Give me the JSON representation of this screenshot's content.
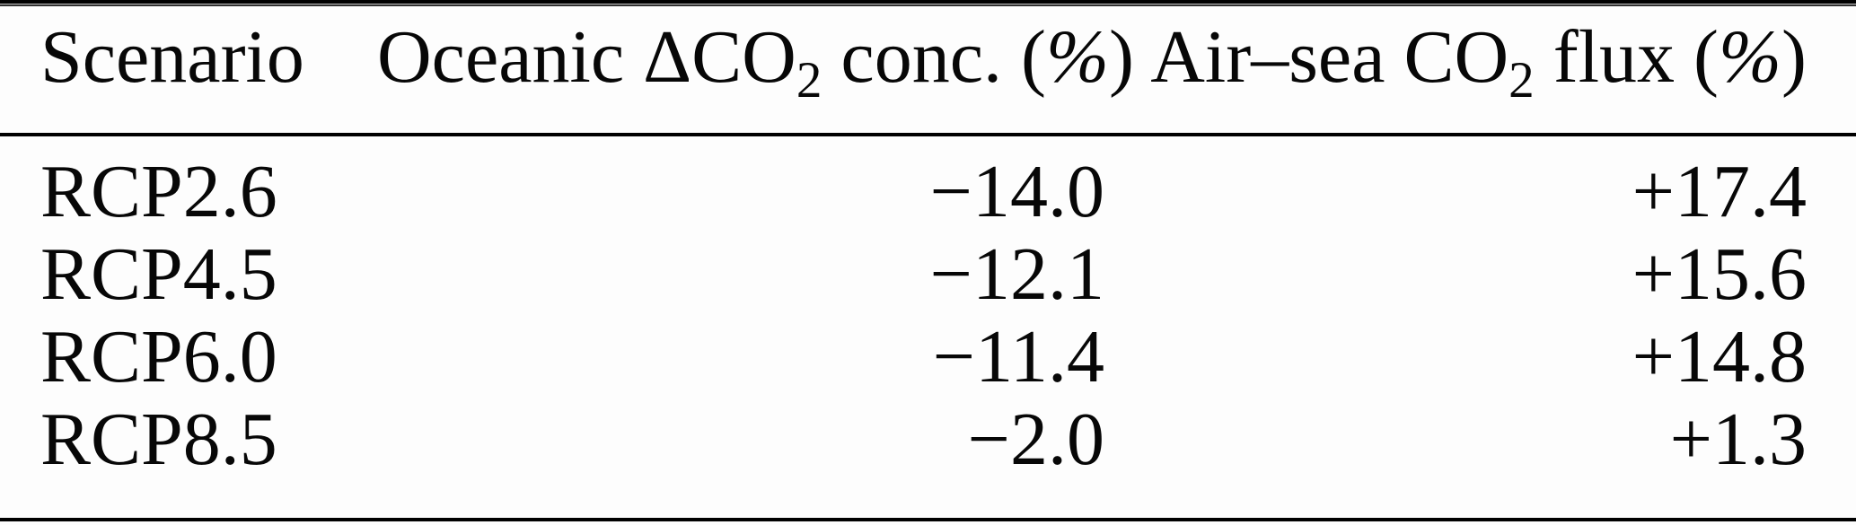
{
  "page": {
    "background": "#fdfdfd",
    "text_color": "#070707",
    "rule_color": "#000000"
  },
  "table": {
    "columns": [
      {
        "label": "Scenario"
      },
      {
        "pre": "Oceanic ΔCO",
        "sub": "2",
        "mid": " conc. ",
        "unit_open": "(",
        "unit_pct": "%",
        "unit_close": ")"
      },
      {
        "pre": "Air–sea CO",
        "sub": "2",
        "mid": " flux ",
        "unit_open": "(",
        "unit_pct": "%",
        "unit_close": ")"
      }
    ],
    "rows": [
      {
        "scenario": "RCP2.6",
        "oceanic_delta_co2_conc_pct": "−14.0",
        "air_sea_co2_flux_pct": "+17.4"
      },
      {
        "scenario": "RCP4.5",
        "oceanic_delta_co2_conc_pct": "−12.1",
        "air_sea_co2_flux_pct": "+15.6"
      },
      {
        "scenario": "RCP6.0",
        "oceanic_delta_co2_conc_pct": "−11.4",
        "air_sea_co2_flux_pct": "+14.8"
      },
      {
        "scenario": "RCP8.5",
        "oceanic_delta_co2_conc_pct": "−2.0",
        "air_sea_co2_flux_pct": "+1.3"
      }
    ]
  },
  "chart_data": {
    "type": "table",
    "columns": [
      "Scenario",
      "Oceanic ΔCO2 conc. (%)",
      "Air–sea CO2 flux (%)"
    ],
    "rows": [
      [
        "RCP2.6",
        -14.0,
        17.4
      ],
      [
        "RCP4.5",
        -12.1,
        15.6
      ],
      [
        "RCP6.0",
        -11.4,
        14.8
      ],
      [
        "RCP8.5",
        -2.0,
        1.3
      ]
    ]
  }
}
